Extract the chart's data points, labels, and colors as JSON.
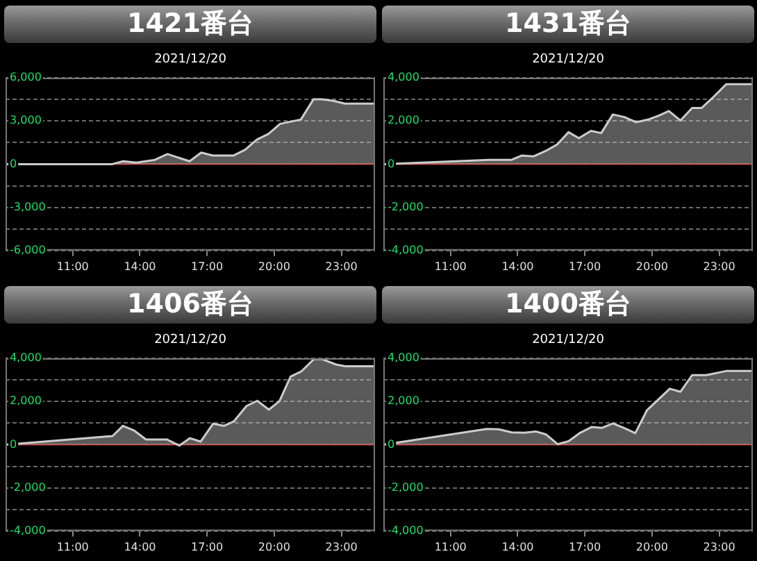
{
  "chart_data": [
    {
      "type": "area",
      "title": "1421番台",
      "subtitle": "2021/12/20",
      "color": "#cccccc",
      "xlim": [
        8,
        24.5
      ],
      "ylim": [
        -6000,
        6000
      ],
      "xticks": [
        {
          "value": 11,
          "label": "11:00"
        },
        {
          "value": 14,
          "label": "14:00"
        },
        {
          "value": 17,
          "label": "17:00"
        },
        {
          "value": 20,
          "label": "20:00"
        },
        {
          "value": 23,
          "label": "23:00"
        }
      ],
      "yticks": [
        {
          "value": 6000,
          "label": "6,000"
        },
        {
          "value": 4500,
          "label": null
        },
        {
          "value": 3000,
          "label": "3,000"
        },
        {
          "value": 1500,
          "label": null
        },
        {
          "value": 0,
          "label": "0"
        },
        {
          "value": -1500,
          "label": null
        },
        {
          "value": -3000,
          "label": "-3,000"
        },
        {
          "value": -4500,
          "label": null
        },
        {
          "value": -6000,
          "label": "-6,000"
        }
      ],
      "grid": "y",
      "ref_lines": [
        {
          "axis": "y",
          "value": 0,
          "color": "#b03030"
        }
      ],
      "x": [
        8,
        12.76,
        13.26,
        13.84,
        14.67,
        15.23,
        16.22,
        16.74,
        17.25,
        18.19,
        18.7,
        19.22,
        19.74,
        20.26,
        21.19,
        21.75,
        22.12,
        22.64,
        23.16,
        24.5
      ],
      "values": [
        0,
        0,
        200,
        100,
        300,
        700,
        200,
        800,
        600,
        600,
        1000,
        1700,
        2100,
        2800,
        3100,
        4500,
        4500,
        4400,
        4200,
        4200
      ]
    },
    {
      "type": "area",
      "title": "1431番台",
      "subtitle": "2021/12/20",
      "color": "#cccccc",
      "xlim": [
        8,
        24.5
      ],
      "ylim": [
        -4000,
        4000
      ],
      "xticks": [
        {
          "value": 11,
          "label": "11:00"
        },
        {
          "value": 14,
          "label": "14:00"
        },
        {
          "value": 17,
          "label": "17:00"
        },
        {
          "value": 20,
          "label": "20:00"
        },
        {
          "value": 23,
          "label": "23:00"
        }
      ],
      "yticks": [
        {
          "value": 4000,
          "label": "4,000"
        },
        {
          "value": 3000,
          "label": null
        },
        {
          "value": 2000,
          "label": "2,000"
        },
        {
          "value": 1000,
          "label": null
        },
        {
          "value": 0,
          "label": "0"
        },
        {
          "value": -1000,
          "label": null
        },
        {
          "value": -2000,
          "label": "-2,000"
        },
        {
          "value": -3000,
          "label": null
        },
        {
          "value": -4000,
          "label": "-4,000"
        }
      ],
      "grid": "y",
      "ref_lines": [
        {
          "axis": "y",
          "value": 0,
          "color": "#b03030"
        }
      ],
      "x": [
        8,
        12.73,
        13.73,
        14.19,
        14.71,
        15.23,
        15.75,
        16.27,
        16.73,
        17.27,
        17.73,
        18.25,
        18.77,
        19.29,
        19.81,
        20.33,
        20.75,
        21.27,
        21.79,
        22.21,
        22.73,
        23.31,
        24.5
      ],
      "values": [
        0,
        200,
        200,
        400,
        360,
        600,
        900,
        1480,
        1200,
        1540,
        1440,
        2300,
        2180,
        1940,
        2060,
        2260,
        2460,
        2020,
        2600,
        2600,
        3100,
        3700,
        3700
      ]
    },
    {
      "type": "area",
      "title": "1406番台",
      "subtitle": "2021/12/20",
      "color": "#cccccc",
      "xlim": [
        8,
        24.5
      ],
      "ylim": [
        -4000,
        4000
      ],
      "xticks": [
        {
          "value": 11,
          "label": "11:00"
        },
        {
          "value": 14,
          "label": "14:00"
        },
        {
          "value": 17,
          "label": "17:00"
        },
        {
          "value": 20,
          "label": "20:00"
        },
        {
          "value": 23,
          "label": "23:00"
        }
      ],
      "yticks": [
        {
          "value": 4000,
          "label": "4,000"
        },
        {
          "value": 3000,
          "label": null
        },
        {
          "value": 2000,
          "label": "2,000"
        },
        {
          "value": 1000,
          "label": null
        },
        {
          "value": 0,
          "label": "0"
        },
        {
          "value": -1000,
          "label": null
        },
        {
          "value": -2000,
          "label": "-2,000"
        },
        {
          "value": -3000,
          "label": null
        },
        {
          "value": -4000,
          "label": "-4,000"
        }
      ],
      "grid": "y",
      "ref_lines": [
        {
          "axis": "y",
          "value": 0,
          "color": "#b03030"
        }
      ],
      "x": [
        8,
        12.78,
        13.24,
        13.75,
        14.27,
        15.2,
        15.76,
        16.24,
        16.71,
        17.27,
        17.75,
        18.2,
        18.76,
        19.24,
        19.76,
        20.23,
        20.73,
        21.21,
        21.77,
        22.14,
        22.76,
        23.17,
        24.5
      ],
      "values": [
        0,
        400,
        870,
        650,
        240,
        240,
        -40,
        300,
        140,
        970,
        870,
        1080,
        1790,
        2030,
        1620,
        2010,
        3150,
        3390,
        3960,
        3960,
        3710,
        3630,
        3630
      ]
    },
    {
      "type": "area",
      "title": "1400番台",
      "subtitle": "2021/12/20",
      "color": "#cccccc",
      "xlim": [
        8,
        24.5
      ],
      "ylim": [
        -4000,
        4000
      ],
      "xticks": [
        {
          "value": 11,
          "label": "11:00"
        },
        {
          "value": 14,
          "label": "14:00"
        },
        {
          "value": 17,
          "label": "17:00"
        },
        {
          "value": 20,
          "label": "20:00"
        },
        {
          "value": 23,
          "label": "23:00"
        }
      ],
      "yticks": [
        {
          "value": 4000,
          "label": "4,000"
        },
        {
          "value": 3000,
          "label": null
        },
        {
          "value": 2000,
          "label": "2,000"
        },
        {
          "value": 1000,
          "label": null
        },
        {
          "value": 0,
          "label": "0"
        },
        {
          "value": -1000,
          "label": null
        },
        {
          "value": -2000,
          "label": "-2,000"
        },
        {
          "value": -3000,
          "label": null
        },
        {
          "value": -4000,
          "label": "-4,000"
        }
      ],
      "grid": "y",
      "ref_lines": [
        {
          "axis": "y",
          "value": 0,
          "color": "#b03030"
        }
      ],
      "x": [
        8,
        12.63,
        13.15,
        13.73,
        14.29,
        14.81,
        15.27,
        15.79,
        16.27,
        16.79,
        17.31,
        17.77,
        18.25,
        18.73,
        19.25,
        19.77,
        20.29,
        20.79,
        21.27,
        21.79,
        22.42,
        23.31,
        24.5
      ],
      "values": [
        0,
        730,
        710,
        570,
        550,
        610,
        470,
        20,
        160,
        550,
        820,
        780,
        980,
        780,
        530,
        1590,
        2100,
        2590,
        2450,
        3220,
        3220,
        3410,
        3410
      ]
    }
  ]
}
